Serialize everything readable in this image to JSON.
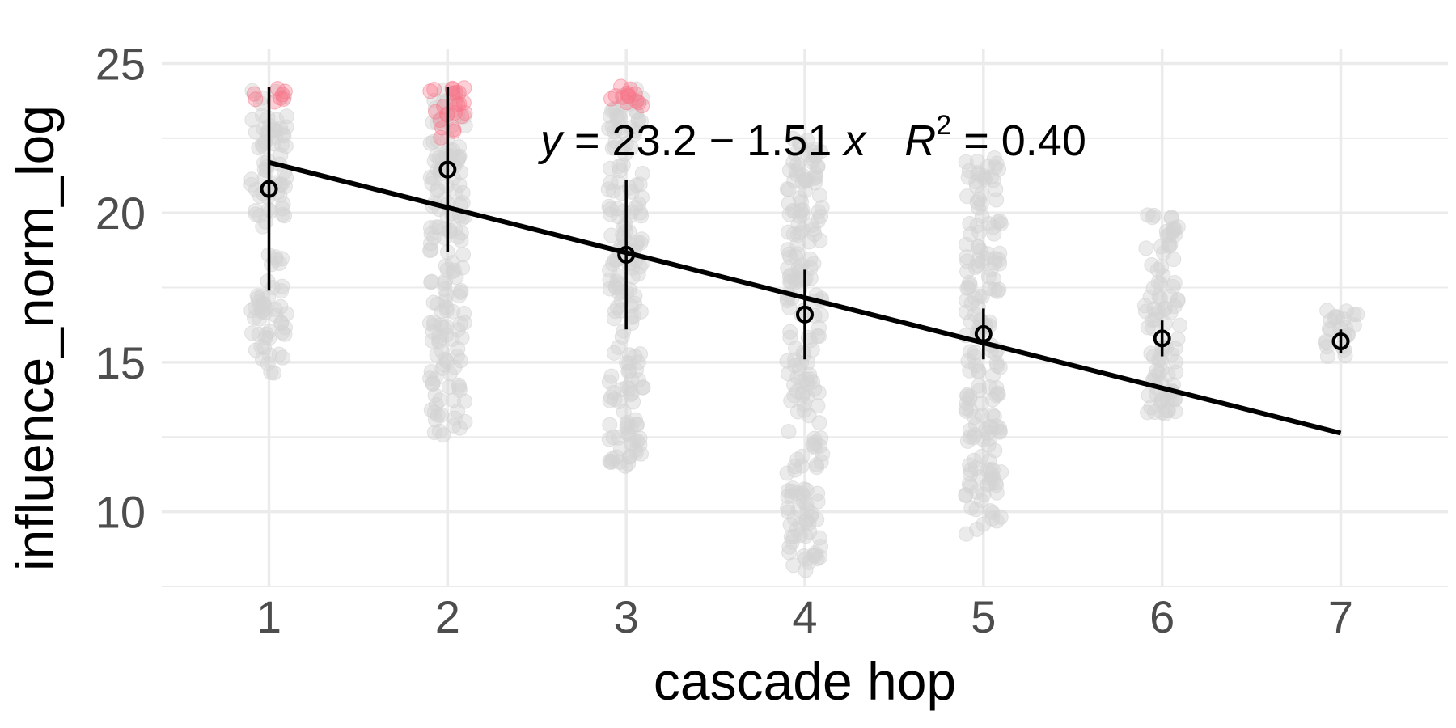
{
  "chart_data": {
    "type": "scatter",
    "xlabel": "cascade hop",
    "ylabel": "influence_norm_log",
    "x_ticks": [
      1,
      2,
      3,
      4,
      5,
      6,
      7
    ],
    "y_ticks": [
      10,
      15,
      20,
      25
    ],
    "xlim": [
      0.4,
      7.6
    ],
    "ylim": [
      7.5,
      25.5
    ],
    "grid": true,
    "annotation": {
      "y_symbol": "y",
      "equals1": " = 23.2 − 1.51 ",
      "x_symbol": "x",
      "r_symbol": "R",
      "r_exp": "2",
      "equals2": " = 0.40"
    },
    "regression": {
      "intercept": 23.2,
      "slope": -1.51,
      "r_squared": 0.4,
      "x_range": [
        1,
        7
      ]
    },
    "summary": {
      "x": [
        1,
        2,
        3,
        4,
        5,
        6,
        7
      ],
      "mean": [
        20.8,
        21.45,
        18.6,
        16.6,
        15.95,
        15.8,
        15.7
      ],
      "lower": [
        17.4,
        18.7,
        16.1,
        15.1,
        15.1,
        15.2,
        15.3
      ],
      "upper": [
        24.2,
        24.2,
        21.1,
        18.1,
        16.8,
        16.4,
        16.1
      ]
    },
    "point_clouds": [
      {
        "x": 1,
        "bands": [
          [
            14.6,
            17.8
          ],
          [
            18.2,
            18.6
          ],
          [
            19.5,
            24.2
          ]
        ],
        "highlight": [
          23.7,
          24.2
        ]
      },
      {
        "x": 2,
        "bands": [
          [
            12.5,
            24.2
          ]
        ],
        "highlight": [
          22.5,
          24.2
        ]
      },
      {
        "x": 3,
        "bands": [
          [
            11.5,
            24.2
          ]
        ],
        "highlight": [
          23.4,
          24.3
        ]
      },
      {
        "x": 4,
        "bands": [
          [
            8.0,
            22.5
          ]
        ],
        "highlight": null
      },
      {
        "x": 5,
        "bands": [
          [
            9.2,
            21.9
          ]
        ],
        "highlight": null
      },
      {
        "x": 6,
        "bands": [
          [
            13.2,
            20.0
          ]
        ],
        "highlight": null
      },
      {
        "x": 7,
        "bands": [
          [
            15.2,
            16.9
          ]
        ],
        "highlight": null
      }
    ],
    "colors": {
      "points": "#d3d3d3",
      "highlight": "#f8768a",
      "line": "#000000",
      "grid": "#ebebeb"
    }
  }
}
